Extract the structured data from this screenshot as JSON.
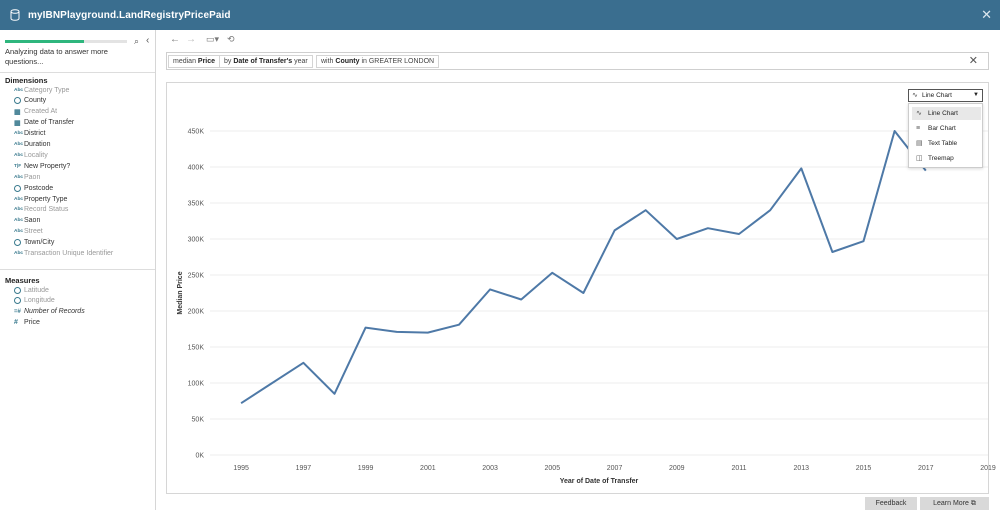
{
  "window": {
    "title": "myIBNPlayground.LandRegistryPricePaid"
  },
  "sidebar": {
    "progress_pct": 0.65,
    "status": "Analyzing data to answer more questions...",
    "dimensions_header": "Dimensions",
    "dimensions": [
      {
        "icon": "Abc",
        "label": "Category Type",
        "style": "dim"
      },
      {
        "icon": "globe",
        "label": "County",
        "style": "bold"
      },
      {
        "icon": "cal",
        "label": "Created At",
        "style": "dim"
      },
      {
        "icon": "cal",
        "label": "Date of Transfer",
        "style": "bold"
      },
      {
        "icon": "Abc",
        "label": "District",
        "style": "bold"
      },
      {
        "icon": "Abc",
        "label": "Duration",
        "style": "bold"
      },
      {
        "icon": "Abc",
        "label": "Locality",
        "style": "dim"
      },
      {
        "icon": "T|F",
        "label": "New Property?",
        "style": "bold"
      },
      {
        "icon": "Abc",
        "label": "Paon",
        "style": "dim"
      },
      {
        "icon": "globe",
        "label": "Postcode",
        "style": "bold"
      },
      {
        "icon": "Abc",
        "label": "Property Type",
        "style": "bold"
      },
      {
        "icon": "Abc",
        "label": "Record Status",
        "style": "dim"
      },
      {
        "icon": "Abc",
        "label": "Saon",
        "style": "bold"
      },
      {
        "icon": "Abc",
        "label": "Street",
        "style": "dim"
      },
      {
        "icon": "globe",
        "label": "Town/City",
        "style": "bold"
      },
      {
        "icon": "Abc",
        "label": "Transaction Unique Identifier",
        "style": "dim"
      }
    ],
    "measures_header": "Measures",
    "measures": [
      {
        "icon": "globe",
        "label": "Latitude",
        "style": "dim"
      },
      {
        "icon": "globe",
        "label": "Longitude",
        "style": "dim"
      },
      {
        "icon": "=#",
        "label": "Number of Records",
        "style": "italic"
      },
      {
        "icon": "#",
        "label": "Price",
        "style": "bold"
      }
    ]
  },
  "query": {
    "chip1": {
      "pre": "median ",
      "bold": "Price",
      "post": ""
    },
    "chip2": {
      "pre": "by ",
      "bold": "Date of Transfer's",
      "post": " year"
    },
    "chip3": {
      "pre": "with ",
      "bold": "County",
      "post": " in GREATER LONDON"
    }
  },
  "viz_selector": {
    "selected": "Line Chart",
    "options": [
      "Line Chart",
      "Bar Chart",
      "Text Table",
      "Treemap"
    ]
  },
  "footer": {
    "feedback": "Feedback",
    "learn_more": "Learn More ⧉"
  },
  "colors": {
    "titlebar": "#3a6e8f",
    "line": "#4e79a7",
    "progress": "#2eb67d"
  },
  "chart_data": {
    "type": "line",
    "xlabel": "Year of Date of Transfer",
    "ylabel": "Median Price",
    "xlim": [
      1994,
      2019
    ],
    "ylim": [
      0,
      450000
    ],
    "x_ticks": [
      1995,
      1997,
      1999,
      2001,
      2003,
      2005,
      2007,
      2009,
      2011,
      2013,
      2015,
      2017,
      2019
    ],
    "y_ticks": [
      0,
      50000,
      100000,
      150000,
      200000,
      250000,
      300000,
      350000,
      400000,
      450000
    ],
    "y_tick_labels": [
      "0K",
      "50K",
      "100K",
      "150K",
      "200K",
      "250K",
      "300K",
      "350K",
      "400K",
      "450K"
    ],
    "grid": true,
    "x": [
      1995,
      1996,
      1997,
      1998,
      1999,
      2000,
      2001,
      2002,
      2003,
      2004,
      2005,
      2006,
      2007,
      2008,
      2009,
      2010,
      2011,
      2012,
      2013,
      2014,
      2015,
      2016,
      2017
    ],
    "y": [
      72000,
      100000,
      128000,
      85000,
      177000,
      171000,
      170000,
      181000,
      230000,
      216000,
      253000,
      225000,
      312000,
      340000,
      300000,
      315000,
      307000,
      340000,
      398000,
      282000,
      297000,
      450000,
      395000
    ]
  }
}
